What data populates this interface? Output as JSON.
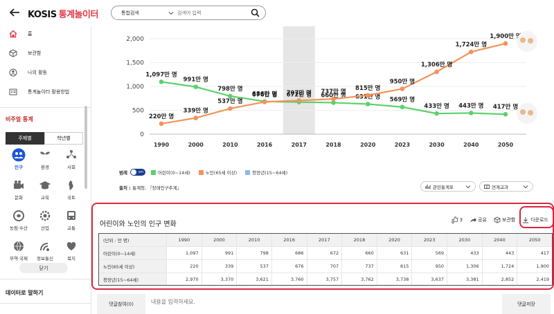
{
  "header": {
    "logo_main": "KOSIS",
    "logo_sub": "통계놀이터",
    "search_scope": "통합검색",
    "search_placeholder": "검색어 입력"
  },
  "sidebar": {
    "nav": [
      {
        "label": "홈",
        "icon": "home-icon"
      },
      {
        "label": "보관함",
        "icon": "box-icon"
      },
      {
        "label": "나의 활동",
        "icon": "activity-icon"
      },
      {
        "label": "통계놀이터 활용방법",
        "icon": "guide-icon"
      }
    ],
    "section_title": "비주얼 통계",
    "tabs": [
      "주제별",
      "학년별"
    ],
    "topics": [
      {
        "label": "인구",
        "icon": "people-icon"
      },
      {
        "label": "환경",
        "icon": "leaf-icon"
      },
      {
        "label": "사회",
        "icon": "society-icon"
      },
      {
        "label": "문화",
        "icon": "culture-icon"
      },
      {
        "label": "교육",
        "icon": "education-icon"
      },
      {
        "label": "국토",
        "icon": "land-icon"
      },
      {
        "label": "농림·수산",
        "icon": "agri-icon"
      },
      {
        "label": "산업",
        "icon": "industry-icon"
      },
      {
        "label": "교통",
        "icon": "bus-icon"
      },
      {
        "label": "무역·국제",
        "icon": "globe-icon"
      },
      {
        "label": "정보통신",
        "icon": "satellite-icon"
      },
      {
        "label": "복지",
        "icon": "welfare-icon"
      }
    ],
    "close_label": "닫기",
    "section2_title": "데이터로 말하기"
  },
  "chart_data": {
    "type": "line",
    "x": [
      "1990",
      "2000",
      "2010",
      "2016",
      "2017",
      "2018",
      "2020",
      "2023",
      "2030",
      "2040",
      "2050"
    ],
    "highlight_category": "2017",
    "ylim": [
      0,
      2000
    ],
    "yticks": [
      "0",
      "500",
      "1,000",
      "1,500",
      "2,000"
    ],
    "series": [
      {
        "name": "어린이(0~14세)",
        "color": "#5cd16a",
        "values": [
          1097,
          991,
          798,
          686,
          672,
          660,
          631,
          569,
          433,
          443,
          417
        ],
        "labels": [
          "1,097만 명",
          "991만 명",
          "798만 명",
          "686만 명",
          "672만 명",
          "660만 명",
          "631만 명",
          "569만 명",
          "433만 명",
          "443만 명",
          "417만 명"
        ]
      },
      {
        "name": "노인(65세 이상)",
        "color": "#f4925a",
        "values": [
          220,
          339,
          537,
          676,
          707,
          737,
          815,
          950,
          1306,
          1724,
          1900
        ],
        "labels": [
          "220만 명",
          "339만 명",
          "537만 명",
          "676만 명",
          "707만 명",
          "737만 명",
          "815만 명",
          "950만 명",
          "1,306만 명",
          "1,724만 명",
          "1,900만 명"
        ]
      },
      {
        "name": "청장년(15~64세)",
        "color": "#8fb8e8",
        "values": [
          2970,
          3370,
          3621,
          3760,
          3757,
          3762,
          3738,
          3637,
          3381,
          2852,
          2419
        ],
        "hidden": true
      }
    ],
    "legend_title": "범례",
    "toggle_label": "on"
  },
  "source": {
    "prefix": "출처 : ",
    "text": "통계청, 『장래인구추계』"
  },
  "dropdowns": [
    "관련통계표",
    "연계교과"
  ],
  "panel": {
    "title": "어린이와 노인의 인구 변화",
    "like_count": "3",
    "share_label": "공유",
    "save_label": "보관함",
    "download_label": "다운로드",
    "table": {
      "unit_header": "(단위 : 만 명)",
      "columns": [
        "1990",
        "2000",
        "2010",
        "2016",
        "2017",
        "2018",
        "2020",
        "2023",
        "2030",
        "2040",
        "2050"
      ],
      "rows": [
        {
          "label": "어린이(0~14세)",
          "values": [
            "1,097",
            "991",
            "798",
            "686",
            "672",
            "660",
            "631",
            "569",
            "433",
            "443",
            "417"
          ]
        },
        {
          "label": "노인(65세 이상)",
          "values": [
            "220",
            "339",
            "537",
            "676",
            "707",
            "737",
            "815",
            "950",
            "1,306",
            "1,724",
            "1,900"
          ]
        },
        {
          "label": "청장년(15~64세)",
          "values": [
            "2,970",
            "3,370",
            "3,621",
            "3,760",
            "3,757",
            "3,762",
            "3,738",
            "3,637",
            "3,381",
            "2,852",
            "2,419"
          ]
        }
      ]
    }
  },
  "comment": {
    "button_label": "댓글참여(0)",
    "placeholder": "내용을 입력하세요.",
    "save_label": "댓글저장"
  }
}
